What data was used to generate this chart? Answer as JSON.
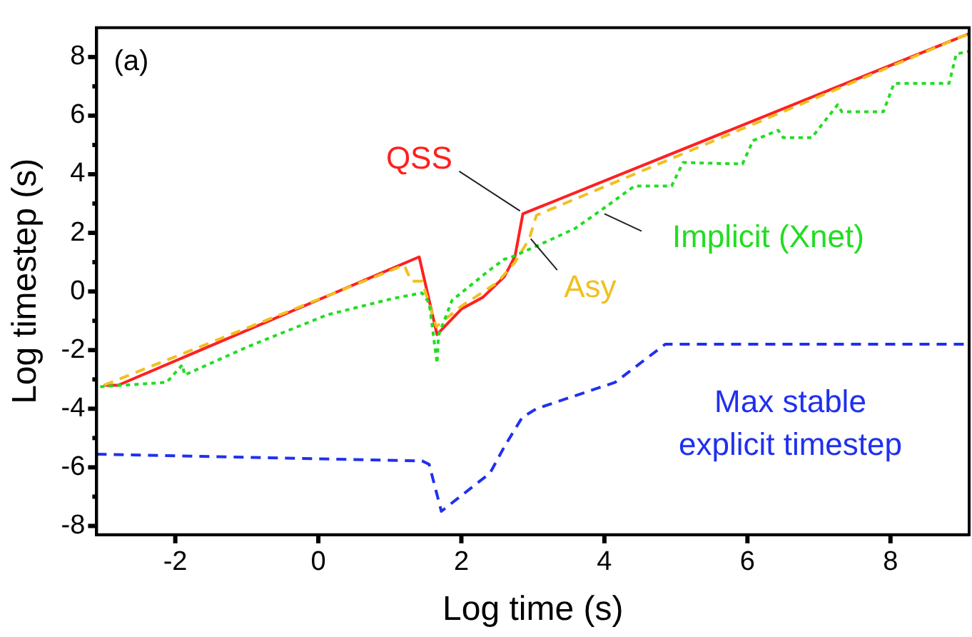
{
  "chart_data": {
    "type": "line",
    "xlabel": "Log time (s)",
    "ylabel": "Log timestep (s)",
    "xlim": [
      -3.1,
      9.1
    ],
    "ylim": [
      -8.3,
      9
    ],
    "xticks": [
      -2,
      0,
      2,
      4,
      6,
      8
    ],
    "yticks": [
      -8,
      {
        "value": -7,
        "label": null
      },
      -6,
      {
        "value": -5,
        "label": null
      },
      -4,
      {
        "value": -3,
        "label": null
      },
      -2,
      {
        "value": -1,
        "label": null
      },
      0,
      {
        "value": 1,
        "label": null
      },
      2,
      {
        "value": 3,
        "label": null
      },
      4,
      {
        "value": 5,
        "label": null
      },
      6,
      {
        "value": 7,
        "label": null
      },
      8
    ],
    "grid": false,
    "legend": false,
    "marker": "none",
    "annotations": [
      "(a)"
    ],
    "series": [
      {
        "name": "Implicit (Xnet)",
        "color": "#22dd22",
        "line_style": "dotted",
        "x": [
          -3.05,
          -2.12,
          -1.9,
          -1.87,
          -1.0,
          0.12,
          1.04,
          1.45,
          1.55,
          1.66,
          1.68,
          1.87,
          2.4,
          2.6,
          2.7,
          3.07,
          3.59,
          4.05,
          4.42,
          4.94,
          5.1,
          5.93,
          6.08,
          6.43,
          6.5,
          6.9,
          7.26,
          7.32,
          7.9,
          8.05,
          8.82,
          8.92,
          9.1
        ],
        "values": [
          -3.25,
          -3.1,
          -2.5,
          -2.85,
          -1.9,
          -0.8,
          -0.24,
          -0.05,
          -0.4,
          -2.45,
          -1.5,
          -0.3,
          0.74,
          1.1,
          1.17,
          1.57,
          2.15,
          2.94,
          3.6,
          3.6,
          4.4,
          4.35,
          5.15,
          5.5,
          5.25,
          5.25,
          6.37,
          6.13,
          6.13,
          7.1,
          7.1,
          8.1,
          8.2
        ]
      },
      {
        "name": "Asy",
        "color": "#f0c020",
        "line_style": "dashed",
        "x": [
          -3.0,
          1.2,
          1.3,
          1.45,
          1.65,
          2.0,
          2.5,
          2.75,
          2.95,
          3.05,
          9.1
        ],
        "values": [
          -3.2,
          0.9,
          0.35,
          0.35,
          -1.2,
          -0.5,
          0.3,
          1.0,
          1.8,
          2.6,
          8.8
        ]
      },
      {
        "name": "QSS",
        "color": "#ff2020",
        "line_style": "solid",
        "x": [
          -3.0,
          -2.8,
          1.41,
          1.66,
          2.0,
          2.3,
          2.6,
          2.75,
          2.86,
          9.1
        ],
        "values": [
          -3.2,
          -3.2,
          1.18,
          -1.47,
          -0.6,
          -0.2,
          0.5,
          1.2,
          2.65,
          8.8
        ]
      },
      {
        "name": "Max stable explicit timestep",
        "color": "#2030ee",
        "line_style": "dashed",
        "x": [
          -3.1,
          1.45,
          1.55,
          1.72,
          2.4,
          2.6,
          2.85,
          3.05,
          4.15,
          4.85,
          9.1
        ],
        "values": [
          -5.55,
          -5.78,
          -5.9,
          -7.5,
          -6.2,
          -5.3,
          -4.3,
          -4.0,
          -3.1,
          -1.8,
          -1.8
        ]
      }
    ]
  }
}
